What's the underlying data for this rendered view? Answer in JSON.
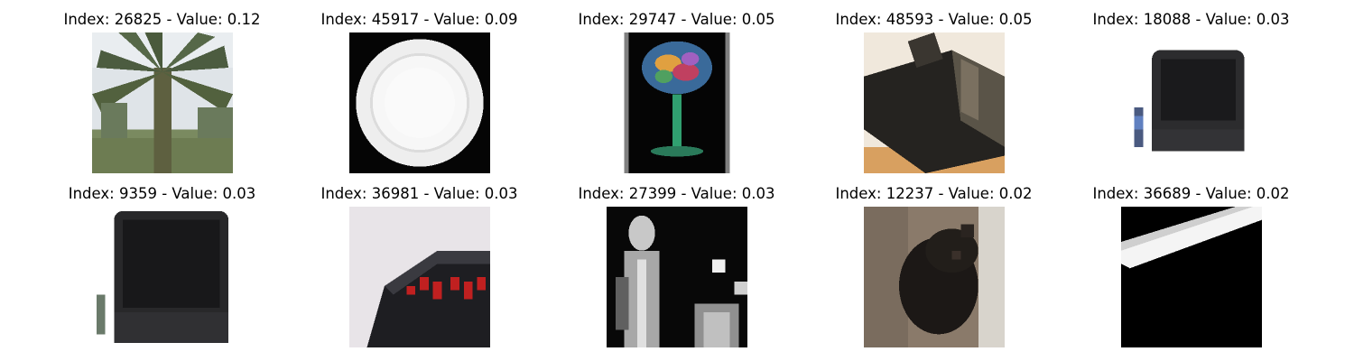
{
  "grid": {
    "items": [
      {
        "index": "26825",
        "value": "0.12",
        "title": "Index: 26825 - Value: 0.12",
        "subject": "palm-tree"
      },
      {
        "index": "45917",
        "value": "0.09",
        "title": "Index: 45917 - Value: 0.09",
        "subject": "white-plate"
      },
      {
        "index": "29747",
        "value": "0.05",
        "title": "Index: 29747 - Value: 0.05",
        "subject": "cocktail-glass"
      },
      {
        "index": "48593",
        "value": "0.05",
        "title": "Index: 48593 - Value: 0.05",
        "subject": "dark-box"
      },
      {
        "index": "18088",
        "value": "0.03",
        "title": "Index: 18088 - Value: 0.03",
        "subject": "crt-television"
      },
      {
        "index": "9359",
        "value": "0.03",
        "title": "Index: 9359 - Value: 0.03",
        "subject": "crt-television"
      },
      {
        "index": "36981",
        "value": "0.03",
        "title": "Index: 36981 - Value: 0.03",
        "subject": "alarm-clock"
      },
      {
        "index": "27399",
        "value": "0.03",
        "title": "Index: 27399 - Value: 0.03",
        "subject": "person-photo"
      },
      {
        "index": "12237",
        "value": "0.02",
        "title": "Index: 12237 - Value: 0.02",
        "subject": "dark-animal"
      },
      {
        "index": "36689",
        "value": "0.02",
        "title": "Index: 36689 - Value: 0.02",
        "subject": "white-stripe"
      }
    ]
  }
}
